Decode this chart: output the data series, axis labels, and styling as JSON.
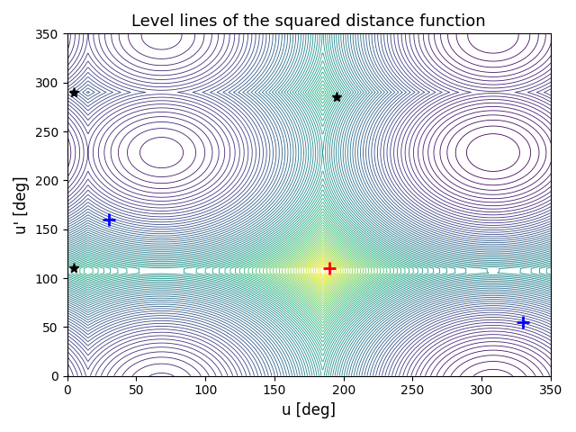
{
  "title": "Level lines of the squared distance function",
  "xlabel": "u [deg]",
  "ylabel": "u' [deg]",
  "xlim": [
    0,
    350
  ],
  "ylim": [
    0,
    350
  ],
  "xticks": [
    0,
    50,
    100,
    150,
    200,
    250,
    300,
    350
  ],
  "yticks": [
    0,
    50,
    100,
    150,
    200,
    250,
    300,
    350
  ],
  "data_points_u": [
    5,
    5,
    195
  ],
  "data_points_up": [
    290,
    110,
    285
  ],
  "blue_plus_u": [
    30,
    330
  ],
  "blue_plus_up": [
    160,
    55
  ],
  "red_plus": [
    190,
    110
  ],
  "n_levels": 80,
  "colormap": "viridis",
  "grid_resolution": 500
}
